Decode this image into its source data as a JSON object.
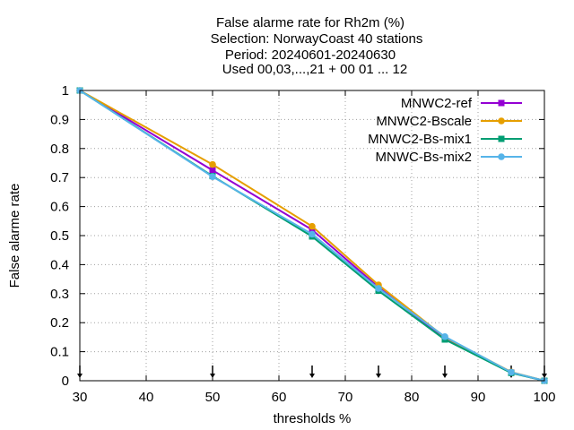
{
  "chart_data": {
    "type": "line",
    "title_lines": [
      "False alarme rate  for Rh2m (%)",
      "Selection: NorwayCoast     40 stations",
      "Period: 20240601-20240630",
      "Used 00,03,...,21 + 00 01 ... 12"
    ],
    "xlabel": "thresholds %",
    "ylabel": "False alarme rate",
    "xlim": [
      30,
      100
    ],
    "ylim": [
      0,
      1
    ],
    "xticks": [
      30,
      40,
      50,
      60,
      70,
      80,
      90,
      100
    ],
    "yticks": [
      0,
      0.1,
      0.2,
      0.3,
      0.4,
      0.5,
      0.6,
      0.7,
      0.8,
      0.9,
      1
    ],
    "grid": true,
    "legend_position": "top-right",
    "threshold_markers": [
      30,
      50,
      65,
      75,
      85,
      95,
      100
    ],
    "x": [
      30,
      50,
      65,
      75,
      85,
      95,
      100
    ],
    "series": [
      {
        "name": "MNWC2-ref",
        "color": "#9400d3",
        "marker": "square",
        "values": [
          1.0,
          0.725,
          0.52,
          0.322,
          0.146,
          0.028,
          0.0
        ]
      },
      {
        "name": "MNWC2-Bscale",
        "color": "#e69f00",
        "marker": "circle",
        "values": [
          1.0,
          0.745,
          0.532,
          0.33,
          0.15,
          0.03,
          0.0
        ]
      },
      {
        "name": "MNWC2-Bs-mix1",
        "color": "#009e73",
        "marker": "square",
        "values": [
          1.0,
          0.705,
          0.497,
          0.31,
          0.142,
          0.027,
          0.0
        ]
      },
      {
        "name": "MNWC-Bs-mix2",
        "color": "#56b4e9",
        "marker": "circle",
        "values": [
          1.0,
          0.703,
          0.505,
          0.318,
          0.152,
          0.029,
          0.0
        ]
      }
    ]
  }
}
